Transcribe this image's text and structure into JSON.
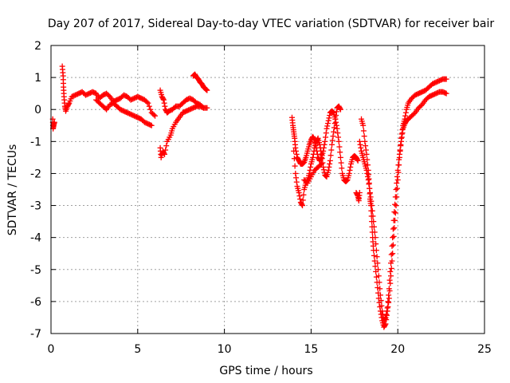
{
  "chart_data": {
    "type": "scatter",
    "title": "Day 207 of 2017, Sidereal Day-to-day VTEC variation (SDTVAR) for receiver bair",
    "xlabel": "GPS time / hours",
    "ylabel": "SDTVAR / TECUs",
    "xlim": [
      0,
      25
    ],
    "ylim": [
      -7,
      2
    ],
    "xticks": [
      0,
      5,
      10,
      15,
      20,
      25
    ],
    "yticks": [
      -7,
      -6,
      -5,
      -4,
      -3,
      -2,
      -1,
      0,
      1,
      2
    ],
    "grid": true,
    "marker": "+",
    "colors": {
      "series": "#ff0000",
      "grid": "#a0a0a0",
      "axes": "#000000"
    },
    "series": [
      {
        "segments": [
          [
            [
              0.1,
              -0.3
            ],
            [
              0.12,
              -0.6
            ],
            [
              0.15,
              -0.5
            ],
            [
              0.2,
              -0.4
            ]
          ],
          [
            [
              0.65,
              1.35
            ],
            [
              0.7,
              1.05
            ],
            [
              0.72,
              0.7
            ],
            [
              0.75,
              0.4
            ],
            [
              0.8,
              0.1
            ],
            [
              0.85,
              -0.05
            ],
            [
              0.95,
              0.1
            ],
            [
              1.05,
              0.2
            ],
            [
              1.2,
              0.4
            ],
            [
              1.4,
              0.45
            ],
            [
              1.6,
              0.5
            ],
            [
              1.8,
              0.55
            ],
            [
              2.0,
              0.45
            ],
            [
              2.2,
              0.5
            ],
            [
              2.4,
              0.55
            ],
            [
              2.6,
              0.5
            ],
            [
              2.8,
              0.35
            ],
            [
              3.0,
              0.45
            ],
            [
              3.2,
              0.5
            ],
            [
              3.4,
              0.4
            ],
            [
              3.6,
              0.25
            ],
            [
              3.8,
              0.3
            ],
            [
              4.0,
              0.35
            ],
            [
              4.2,
              0.45
            ],
            [
              4.4,
              0.4
            ],
            [
              4.6,
              0.3
            ],
            [
              4.8,
              0.35
            ],
            [
              5.0,
              0.4
            ],
            [
              5.2,
              0.35
            ],
            [
              5.4,
              0.3
            ],
            [
              5.6,
              0.2
            ],
            [
              5.8,
              -0.1
            ],
            [
              6.0,
              -0.2
            ]
          ],
          [
            [
              2.6,
              0.3
            ],
            [
              2.8,
              0.2
            ],
            [
              3.0,
              0.1
            ],
            [
              3.2,
              0.0
            ],
            [
              3.4,
              0.15
            ],
            [
              3.6,
              0.2
            ],
            [
              3.8,
              0.1
            ],
            [
              4.0,
              0.0
            ],
            [
              4.2,
              -0.05
            ],
            [
              4.4,
              -0.1
            ],
            [
              4.6,
              -0.15
            ],
            [
              4.8,
              -0.2
            ],
            [
              5.0,
              -0.25
            ],
            [
              5.2,
              -0.3
            ],
            [
              5.4,
              -0.4
            ],
            [
              5.6,
              -0.45
            ],
            [
              5.8,
              -0.5
            ]
          ],
          [
            [
              6.3,
              0.6
            ],
            [
              6.4,
              0.4
            ],
            [
              6.5,
              0.3
            ],
            [
              6.6,
              0.0
            ],
            [
              6.7,
              -0.1
            ],
            [
              6.8,
              -0.05
            ],
            [
              7.0,
              0.0
            ],
            [
              7.2,
              0.1
            ],
            [
              7.4,
              0.1
            ],
            [
              7.6,
              0.2
            ],
            [
              7.8,
              0.3
            ],
            [
              8.0,
              0.35
            ],
            [
              8.2,
              0.3
            ],
            [
              8.4,
              0.2
            ],
            [
              8.6,
              0.15
            ],
            [
              8.8,
              0.05
            ],
            [
              9.0,
              0.05
            ]
          ],
          [
            [
              6.3,
              -1.2
            ],
            [
              6.35,
              -1.5
            ],
            [
              6.45,
              -1.3
            ],
            [
              6.55,
              -1.4
            ],
            [
              6.7,
              -1.0
            ],
            [
              6.9,
              -0.8
            ],
            [
              7.0,
              -0.6
            ],
            [
              7.2,
              -0.4
            ],
            [
              7.4,
              -0.25
            ],
            [
              7.6,
              -0.1
            ],
            [
              7.8,
              -0.05
            ],
            [
              8.0,
              0.0
            ],
            [
              8.2,
              0.05
            ],
            [
              8.4,
              0.1
            ],
            [
              8.6,
              0.1
            ],
            [
              8.8,
              0.05
            ]
          ],
          [
            [
              8.2,
              1.05
            ],
            [
              8.3,
              1.1
            ],
            [
              8.4,
              1.0
            ],
            [
              8.5,
              0.95
            ],
            [
              8.6,
              0.85
            ],
            [
              8.7,
              0.8
            ],
            [
              8.8,
              0.7
            ],
            [
              8.9,
              0.65
            ],
            [
              9.0,
              0.6
            ]
          ],
          [
            [
              13.9,
              -0.25
            ],
            [
              13.95,
              -0.5
            ],
            [
              14.0,
              -0.7
            ],
            [
              14.05,
              -0.9
            ],
            [
              14.1,
              -1.2
            ],
            [
              14.2,
              -1.5
            ],
            [
              14.3,
              -1.6
            ],
            [
              14.4,
              -1.7
            ],
            [
              14.5,
              -1.7
            ],
            [
              14.6,
              -1.65
            ],
            [
              14.7,
              -1.5
            ],
            [
              14.8,
              -1.3
            ],
            [
              14.9,
              -1.1
            ],
            [
              15.0,
              -0.95
            ],
            [
              15.1,
              -0.85
            ],
            [
              15.2,
              -0.95
            ],
            [
              15.3,
              -1.2
            ],
            [
              15.4,
              -1.5
            ],
            [
              15.5,
              -1.6
            ],
            [
              15.6,
              -1.5
            ],
            [
              15.7,
              -1.3
            ],
            [
              15.8,
              -1.0
            ],
            [
              15.9,
              -0.6
            ],
            [
              16.0,
              -0.35
            ],
            [
              16.1,
              -0.1
            ],
            [
              16.2,
              -0.05
            ],
            [
              16.3,
              -0.1
            ],
            [
              16.4,
              -0.3
            ],
            [
              16.5,
              -0.6
            ],
            [
              16.6,
              -1.0
            ],
            [
              16.7,
              -1.5
            ],
            [
              16.8,
              -2.0
            ],
            [
              16.9,
              -2.2
            ],
            [
              17.0,
              -2.25
            ],
            [
              17.1,
              -2.2
            ],
            [
              17.2,
              -2.0
            ],
            [
              17.3,
              -1.7
            ],
            [
              17.4,
              -1.5
            ],
            [
              17.5,
              -1.45
            ],
            [
              17.6,
              -1.5
            ],
            [
              17.7,
              -1.6
            ]
          ],
          [
            [
              14.0,
              -1.3
            ],
            [
              14.1,
              -2.0
            ],
            [
              14.2,
              -2.4
            ],
            [
              14.3,
              -2.6
            ],
            [
              14.4,
              -2.9
            ],
            [
              14.5,
              -3.0
            ],
            [
              14.6,
              -2.5
            ],
            [
              14.7,
              -2.3
            ],
            [
              14.8,
              -2.2
            ],
            [
              14.9,
              -2.0
            ],
            [
              15.0,
              -1.7
            ],
            [
              15.1,
              -1.5
            ],
            [
              15.2,
              -1.2
            ],
            [
              15.3,
              -1.0
            ],
            [
              15.4,
              -0.9
            ],
            [
              15.5,
              -1.1
            ],
            [
              15.6,
              -1.4
            ],
            [
              15.7,
              -1.8
            ],
            [
              15.8,
              -2.05
            ],
            [
              15.9,
              -2.1
            ],
            [
              16.0,
              -1.9
            ],
            [
              16.1,
              -1.6
            ],
            [
              16.2,
              -1.1
            ],
            [
              16.3,
              -0.7
            ],
            [
              16.4,
              -0.3
            ],
            [
              16.5,
              0.05
            ],
            [
              16.6,
              0.1
            ],
            [
              16.7,
              0.0
            ]
          ],
          [
            [
              14.6,
              -2.2
            ],
            [
              14.8,
              -2.3
            ],
            [
              15.0,
              -2.1
            ],
            [
              15.2,
              -1.9
            ],
            [
              15.4,
              -1.8
            ],
            [
              15.6,
              -1.7
            ]
          ],
          [
            [
              17.6,
              -2.6
            ],
            [
              17.7,
              -2.7
            ],
            [
              17.75,
              -2.85
            ],
            [
              17.8,
              -2.6
            ]
          ],
          [
            [
              17.9,
              -0.3
            ],
            [
              18.0,
              -0.5
            ],
            [
              18.1,
              -1.0
            ],
            [
              18.2,
              -1.4
            ],
            [
              18.3,
              -1.9
            ],
            [
              18.35,
              -2.3
            ],
            [
              18.4,
              -2.8
            ],
            [
              18.45,
              -3.0
            ],
            [
              18.5,
              -3.5
            ],
            [
              18.55,
              -4.0
            ],
            [
              18.6,
              -4.4
            ],
            [
              18.7,
              -4.9
            ],
            [
              18.8,
              -5.4
            ],
            [
              18.9,
              -5.9
            ],
            [
              19.0,
              -6.3
            ],
            [
              19.1,
              -6.6
            ],
            [
              19.2,
              -6.8
            ],
            [
              19.3,
              -6.7
            ],
            [
              19.4,
              -6.3
            ],
            [
              19.5,
              -5.9
            ],
            [
              19.6,
              -5.2
            ],
            [
              19.7,
              -4.5
            ],
            [
              19.8,
              -3.7
            ],
            [
              19.9,
              -3.0
            ],
            [
              20.0,
              -2.2
            ],
            [
              20.1,
              -1.5
            ],
            [
              20.2,
              -0.9
            ],
            [
              20.3,
              -0.5
            ],
            [
              20.4,
              -0.3
            ],
            [
              20.5,
              0.0
            ],
            [
              20.6,
              0.2
            ],
            [
              20.8,
              0.35
            ],
            [
              21.0,
              0.45
            ],
            [
              21.2,
              0.5
            ],
            [
              21.4,
              0.55
            ],
            [
              21.6,
              0.6
            ],
            [
              21.8,
              0.7
            ],
            [
              22.0,
              0.8
            ],
            [
              22.2,
              0.85
            ],
            [
              22.4,
              0.9
            ],
            [
              22.6,
              0.95
            ],
            [
              22.8,
              0.95
            ]
          ],
          [
            [
              17.8,
              -1.0
            ],
            [
              17.9,
              -1.3
            ],
            [
              18.0,
              -1.5
            ],
            [
              18.1,
              -1.7
            ],
            [
              18.2,
              -1.9
            ],
            [
              18.3,
              -2.2
            ],
            [
              18.4,
              -2.6
            ],
            [
              18.5,
              -3.0
            ],
            [
              18.6,
              -3.5
            ],
            [
              18.7,
              -4.0
            ],
            [
              18.8,
              -4.6
            ],
            [
              18.9,
              -5.2
            ],
            [
              19.0,
              -5.8
            ],
            [
              19.1,
              -6.3
            ],
            [
              19.2,
              -6.6
            ],
            [
              19.3,
              -6.5
            ],
            [
              19.4,
              -6.2
            ],
            [
              19.5,
              -5.6
            ],
            [
              19.6,
              -4.8
            ],
            [
              19.7,
              -4.0
            ],
            [
              19.8,
              -3.2
            ],
            [
              19.9,
              -2.5
            ],
            [
              20.0,
              -1.9
            ],
            [
              20.1,
              -1.4
            ],
            [
              20.2,
              -1.0
            ],
            [
              20.3,
              -0.6
            ],
            [
              20.4,
              -0.45
            ],
            [
              20.5,
              -0.35
            ],
            [
              20.6,
              -0.3
            ],
            [
              20.8,
              -0.2
            ],
            [
              21.0,
              -0.1
            ],
            [
              21.2,
              0.05
            ],
            [
              21.4,
              0.15
            ],
            [
              21.6,
              0.3
            ],
            [
              21.8,
              0.4
            ],
            [
              22.0,
              0.45
            ],
            [
              22.2,
              0.5
            ],
            [
              22.4,
              0.55
            ],
            [
              22.6,
              0.55
            ],
            [
              22.8,
              0.5
            ]
          ]
        ]
      }
    ]
  }
}
